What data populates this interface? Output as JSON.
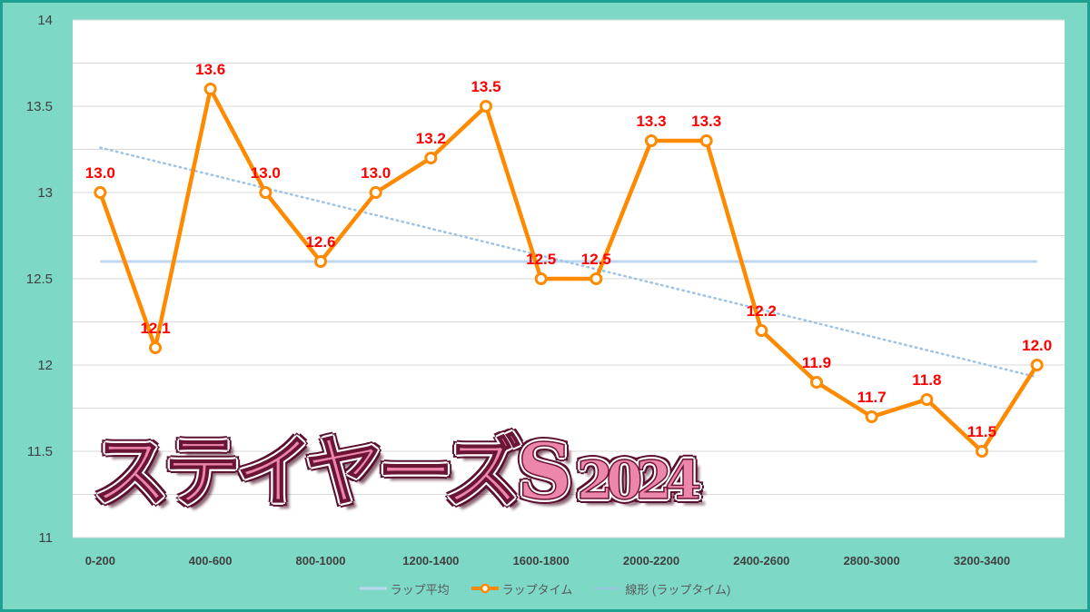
{
  "title_overlay": {
    "main": "ステイヤーズS",
    "year": "2024"
  },
  "colors": {
    "background": "#7dd9c5",
    "border": "#1ea191",
    "plot_bg": "#ffffff",
    "grid": "#d9d9d9",
    "lap_time": "#ff8a00",
    "average": "#bdd7ee",
    "trend": "#9dc3e6",
    "data_label": "#ff0000",
    "axis_text": "#404040",
    "legend_text": "#595959",
    "title_fill": "#ec86ab"
  },
  "chart_data": {
    "type": "line",
    "title": "",
    "xlabel": "",
    "ylabel": "",
    "ylim": [
      11,
      14
    ],
    "y_ticks": [
      14,
      13.5,
      13,
      12.5,
      12,
      11.5,
      11
    ],
    "gridline_step": 0.25,
    "grid": true,
    "legend_position": "bottom",
    "categories": [
      "0-200",
      "",
      "400-600",
      "",
      "800-1000",
      "",
      "1200-1400",
      "",
      "1600-1800",
      "",
      "2000-2200",
      "",
      "2400-2600",
      "",
      "2800-3000",
      "",
      "3200-3400",
      ""
    ],
    "series": [
      {
        "name": "ラップ平均",
        "kind": "constant",
        "value": 12.6
      },
      {
        "name": "ラップタイム",
        "kind": "line-markers",
        "values": [
          13.0,
          12.1,
          13.6,
          13.0,
          12.6,
          13.0,
          13.2,
          13.5,
          12.5,
          12.5,
          13.3,
          13.3,
          12.2,
          11.9,
          11.7,
          11.8,
          11.5,
          12.0
        ],
        "data_labels": [
          "13.0",
          "12.1",
          "13.6",
          "13.0",
          "12.6",
          "13.0",
          "13.2",
          "13.5",
          "12.5",
          "12.5",
          "13.3",
          "13.3",
          "12.2",
          "11.9",
          "11.7",
          "11.8",
          "11.5",
          "12.0"
        ]
      },
      {
        "name": "線形 (ラップタイム)",
        "kind": "linear-trend",
        "from": 13.26,
        "to": 11.93
      }
    ]
  }
}
